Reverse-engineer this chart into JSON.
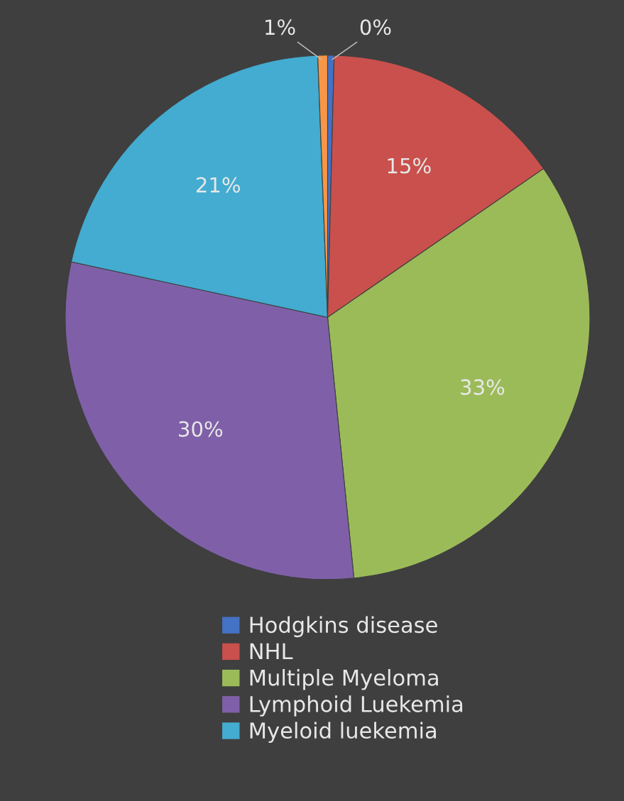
{
  "chart_data": {
    "type": "pie",
    "categories": [
      "Hodgkins disease",
      "NHL",
      "Multiple Myeloma",
      "Lymphoid Luekemia",
      "Myeloid luekemia",
      null
    ],
    "values": [
      0.4,
      15,
      33,
      30,
      21,
      0.6
    ],
    "value_labels": [
      "0%",
      "15%",
      "33%",
      "30%",
      "21%",
      "1%"
    ],
    "colors": [
      "#4472c4",
      "#c9504c",
      "#9bbb59",
      "#7f60a8",
      "#43acd0",
      "#f79646"
    ],
    "legend": "bottom"
  }
}
